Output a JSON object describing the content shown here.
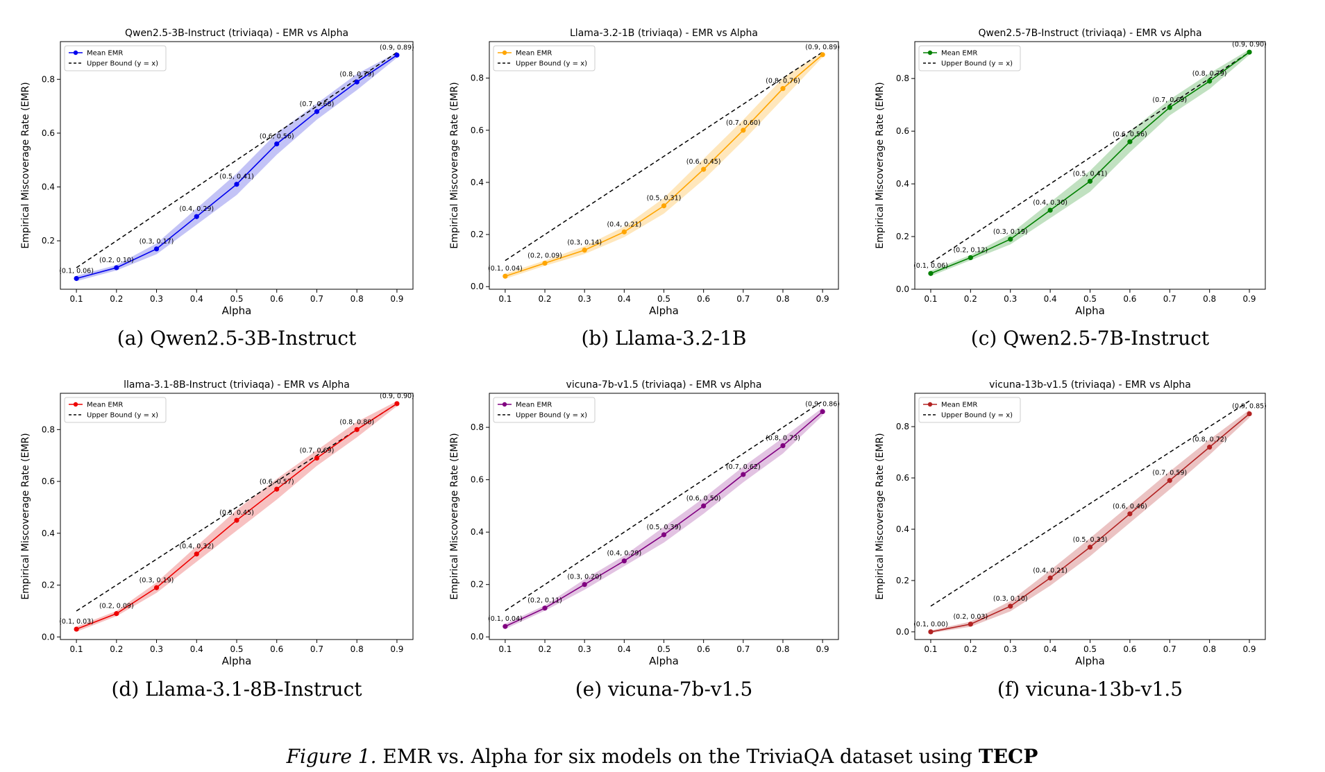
{
  "chart_data": [
    {
      "type": "line",
      "title": "Qwen2.5-3B-Instruct (triviaqa) - EMR vs Alpha",
      "xlabel": "Alpha",
      "ylabel": "Empirical Miscoverage Rate (EMR)",
      "caption": "(a)  Qwen2.5-3B-Instruct",
      "x": [
        0.1,
        0.2,
        0.3,
        0.4,
        0.5,
        0.6,
        0.7,
        0.8,
        0.9
      ],
      "series": [
        {
          "name": "Mean EMR",
          "values": [
            0.06,
            0.1,
            0.17,
            0.29,
            0.41,
            0.56,
            0.68,
            0.79,
            0.89
          ],
          "band": [
            0.01,
            0.01,
            0.02,
            0.03,
            0.04,
            0.04,
            0.03,
            0.03,
            0.01
          ]
        },
        {
          "name": "Upper Bound (y = x)",
          "values": [
            0.1,
            0.2,
            0.3,
            0.4,
            0.5,
            0.6,
            0.7,
            0.8,
            0.9
          ]
        }
      ],
      "point_labels": [
        "(0.1, 0.06)",
        "(0.2, 0.10)",
        "(0.3, 0.17)",
        "(0.4, 0.29)",
        "(0.5, 0.41)",
        "(0.6, 0.56)",
        "(0.7, 0.68)",
        "(0.8, 0.79)",
        "(0.9, 0.89)"
      ],
      "color": "#0000ee",
      "band_color": "#b8b8f5",
      "xticks": [
        "0.1",
        "0.2",
        "0.3",
        "0.4",
        "0.5",
        "0.6",
        "0.7",
        "0.8",
        "0.9"
      ],
      "yticks": [
        0.2,
        0.4,
        0.6,
        0.8
      ],
      "ytick_labels": [
        "0.2",
        "0.4",
        "0.6",
        "0.8"
      ],
      "xlim": [
        0.06,
        0.94
      ],
      "ylim": [
        0.02,
        0.94
      ],
      "legend": "top-left",
      "grid": false
    },
    {
      "type": "line",
      "title": "Llama-3.2-1B (triviaqa) - EMR vs Alpha",
      "xlabel": "Alpha",
      "ylabel": "Empirical Miscoverage Rate (EMR)",
      "caption": "(b)  Llama-3.2-1B",
      "x": [
        0.1,
        0.2,
        0.3,
        0.4,
        0.5,
        0.6,
        0.7,
        0.8,
        0.9
      ],
      "series": [
        {
          "name": "Mean EMR",
          "values": [
            0.04,
            0.09,
            0.14,
            0.21,
            0.31,
            0.45,
            0.6,
            0.76,
            0.89
          ],
          "band": [
            0.01,
            0.01,
            0.015,
            0.02,
            0.03,
            0.04,
            0.04,
            0.04,
            0.01
          ]
        },
        {
          "name": "Upper Bound (y = x)",
          "values": [
            0.1,
            0.2,
            0.3,
            0.4,
            0.5,
            0.6,
            0.7,
            0.8,
            0.9
          ]
        }
      ],
      "point_labels": [
        "(0.1, 0.04)",
        "(0.2, 0.09)",
        "(0.3, 0.14)",
        "(0.4, 0.21)",
        "(0.5, 0.31)",
        "(0.6, 0.45)",
        "(0.7, 0.60)",
        "(0.8, 0.76)",
        "(0.9, 0.89)"
      ],
      "color": "#ffa500",
      "band_color": "#ffe3b0",
      "xticks": [
        "0.1",
        "0.2",
        "0.3",
        "0.4",
        "0.5",
        "0.6",
        "0.7",
        "0.8",
        "0.9"
      ],
      "yticks": [
        0.0,
        0.2,
        0.4,
        0.6,
        0.8
      ],
      "ytick_labels": [
        "0.0",
        "0.2",
        "0.4",
        "0.6",
        "0.8"
      ],
      "xlim": [
        0.06,
        0.94
      ],
      "ylim": [
        -0.01,
        0.94
      ],
      "legend": "top-left",
      "grid": false
    },
    {
      "type": "line",
      "title": "Qwen2.5-7B-Instruct (triviaqa) - EMR vs Alpha",
      "xlabel": "Alpha",
      "ylabel": "Empirical Miscoverage Rate (EMR)",
      "caption": "(c)  Qwen2.5-7B-Instruct",
      "x": [
        0.1,
        0.2,
        0.3,
        0.4,
        0.5,
        0.6,
        0.7,
        0.8,
        0.9
      ],
      "series": [
        {
          "name": "Mean EMR",
          "values": [
            0.06,
            0.12,
            0.19,
            0.3,
            0.41,
            0.56,
            0.69,
            0.79,
            0.9
          ],
          "band": [
            0.01,
            0.01,
            0.02,
            0.03,
            0.04,
            0.04,
            0.03,
            0.03,
            0.01
          ]
        },
        {
          "name": "Upper Bound (y = x)",
          "values": [
            0.1,
            0.2,
            0.3,
            0.4,
            0.5,
            0.6,
            0.7,
            0.8,
            0.9
          ]
        }
      ],
      "point_labels": [
        "(0.1, 0.06)",
        "(0.2, 0.12)",
        "(0.3, 0.19)",
        "(0.4, 0.30)",
        "(0.5, 0.41)",
        "(0.6, 0.56)",
        "(0.7, 0.69)",
        "(0.8, 0.79)",
        "(0.9, 0.90)"
      ],
      "color": "#008000",
      "band_color": "#b6dcb6",
      "xticks": [
        "0.1",
        "0.2",
        "0.3",
        "0.4",
        "0.5",
        "0.6",
        "0.7",
        "0.8",
        "0.9"
      ],
      "yticks": [
        0.0,
        0.2,
        0.4,
        0.6,
        0.8
      ],
      "ytick_labels": [
        "0.0",
        "0.2",
        "0.4",
        "0.6",
        "0.8"
      ],
      "xlim": [
        0.06,
        0.94
      ],
      "ylim": [
        0.0,
        0.94
      ],
      "legend": "top-left",
      "grid": false
    },
    {
      "type": "line",
      "title": "llama-3.1-8B-Instruct (triviaqa) - EMR vs Alpha",
      "xlabel": "Alpha",
      "ylabel": "Empirical Miscoverage Rate (EMR)",
      "caption": "(d)  Llama-3.1-8B-Instruct",
      "x": [
        0.1,
        0.2,
        0.3,
        0.4,
        0.5,
        0.6,
        0.7,
        0.8,
        0.9
      ],
      "series": [
        {
          "name": "Mean EMR",
          "values": [
            0.03,
            0.09,
            0.19,
            0.32,
            0.45,
            0.57,
            0.69,
            0.8,
            0.9
          ],
          "band": [
            0.01,
            0.01,
            0.02,
            0.03,
            0.04,
            0.04,
            0.03,
            0.03,
            0.01
          ]
        },
        {
          "name": "Upper Bound (y = x)",
          "values": [
            0.1,
            0.2,
            0.3,
            0.4,
            0.5,
            0.6,
            0.7,
            0.8,
            0.9
          ]
        }
      ],
      "point_labels": [
        "(0.1, 0.03)",
        "(0.2, 0.09)",
        "(0.3, 0.19)",
        "(0.4, 0.32)",
        "(0.5, 0.45)",
        "(0.6, 0.57)",
        "(0.7, 0.69)",
        "(0.8, 0.80)",
        "(0.9, 0.90)"
      ],
      "color": "#ee0000",
      "band_color": "#f6b6b6",
      "xticks": [
        "0.1",
        "0.2",
        "0.3",
        "0.4",
        "0.5",
        "0.6",
        "0.7",
        "0.8",
        "0.9"
      ],
      "yticks": [
        0.0,
        0.2,
        0.4,
        0.6,
        0.8
      ],
      "ytick_labels": [
        "0.0",
        "0.2",
        "0.4",
        "0.6",
        "0.8"
      ],
      "xlim": [
        0.06,
        0.94
      ],
      "ylim": [
        -0.01,
        0.94
      ],
      "legend": "top-left",
      "grid": false
    },
    {
      "type": "line",
      "title": "vicuna-7b-v1.5 (triviaqa) - EMR vs Alpha",
      "xlabel": "Alpha",
      "ylabel": "Empirical Miscoverage Rate (EMR)",
      "caption": "(e)  vicuna-7b-v1.5",
      "x": [
        0.1,
        0.2,
        0.3,
        0.4,
        0.5,
        0.6,
        0.7,
        0.8,
        0.9
      ],
      "series": [
        {
          "name": "Mean EMR",
          "values": [
            0.04,
            0.11,
            0.2,
            0.29,
            0.39,
            0.5,
            0.62,
            0.73,
            0.86
          ],
          "band": [
            0.01,
            0.01,
            0.02,
            0.02,
            0.03,
            0.03,
            0.03,
            0.03,
            0.015
          ]
        },
        {
          "name": "Upper Bound (y = x)",
          "values": [
            0.1,
            0.2,
            0.3,
            0.4,
            0.5,
            0.6,
            0.7,
            0.8,
            0.9
          ]
        }
      ],
      "point_labels": [
        "(0.1, 0.04)",
        "(0.2, 0.11)",
        "(0.3, 0.20)",
        "(0.4, 0.29)",
        "(0.5, 0.39)",
        "(0.6, 0.50)",
        "(0.7, 0.62)",
        "(0.8, 0.73)",
        "(0.9, 0.86)"
      ],
      "color": "#800080",
      "band_color": "#ddb8dd",
      "xticks": [
        "0.1",
        "0.2",
        "0.3",
        "0.4",
        "0.5",
        "0.6",
        "0.7",
        "0.8",
        "0.9"
      ],
      "yticks": [
        0.0,
        0.2,
        0.4,
        0.6,
        0.8
      ],
      "ytick_labels": [
        "0.0",
        "0.2",
        "0.4",
        "0.6",
        "0.8"
      ],
      "xlim": [
        0.06,
        0.94
      ],
      "ylim": [
        -0.01,
        0.93
      ],
      "legend": "top-left",
      "grid": false
    },
    {
      "type": "line",
      "title": "vicuna-13b-v1.5 (triviaqa) - EMR vs Alpha",
      "xlabel": "Alpha",
      "ylabel": "Empirical Miscoverage Rate (EMR)",
      "caption": "(f)  vicuna-13b-v1.5",
      "x": [
        0.1,
        0.2,
        0.3,
        0.4,
        0.5,
        0.6,
        0.7,
        0.8,
        0.9
      ],
      "series": [
        {
          "name": "Mean EMR",
          "values": [
            0.0,
            0.03,
            0.1,
            0.21,
            0.33,
            0.46,
            0.59,
            0.72,
            0.85
          ],
          "band": [
            0.005,
            0.01,
            0.02,
            0.03,
            0.035,
            0.035,
            0.035,
            0.03,
            0.015
          ]
        },
        {
          "name": "Upper Bound (y = x)",
          "values": [
            0.1,
            0.2,
            0.3,
            0.4,
            0.5,
            0.6,
            0.7,
            0.8,
            0.9
          ]
        }
      ],
      "point_labels": [
        "(0.1, 0.00)",
        "(0.2, 0.03)",
        "(0.3, 0.10)",
        "(0.4, 0.21)",
        "(0.5, 0.33)",
        "(0.6, 0.46)",
        "(0.7, 0.59)",
        "(0.8, 0.72)",
        "(0.9, 0.85)"
      ],
      "color": "#b22222",
      "band_color": "#e8b8b8",
      "xticks": [
        "0.1",
        "0.2",
        "0.3",
        "0.4",
        "0.5",
        "0.6",
        "0.7",
        "0.8",
        "0.9"
      ],
      "yticks": [
        0.0,
        0.2,
        0.4,
        0.6,
        0.8
      ],
      "ytick_labels": [
        "0.0",
        "0.2",
        "0.4",
        "0.6",
        "0.8"
      ],
      "xlim": [
        0.06,
        0.94
      ],
      "ylim": [
        -0.03,
        0.93
      ],
      "legend": "top-left",
      "grid": false
    }
  ],
  "figure_caption": {
    "label": "Figure 1.",
    "text": " EMR vs. Alpha for six models on the TriviaQA dataset using ",
    "bold": "TECP"
  }
}
